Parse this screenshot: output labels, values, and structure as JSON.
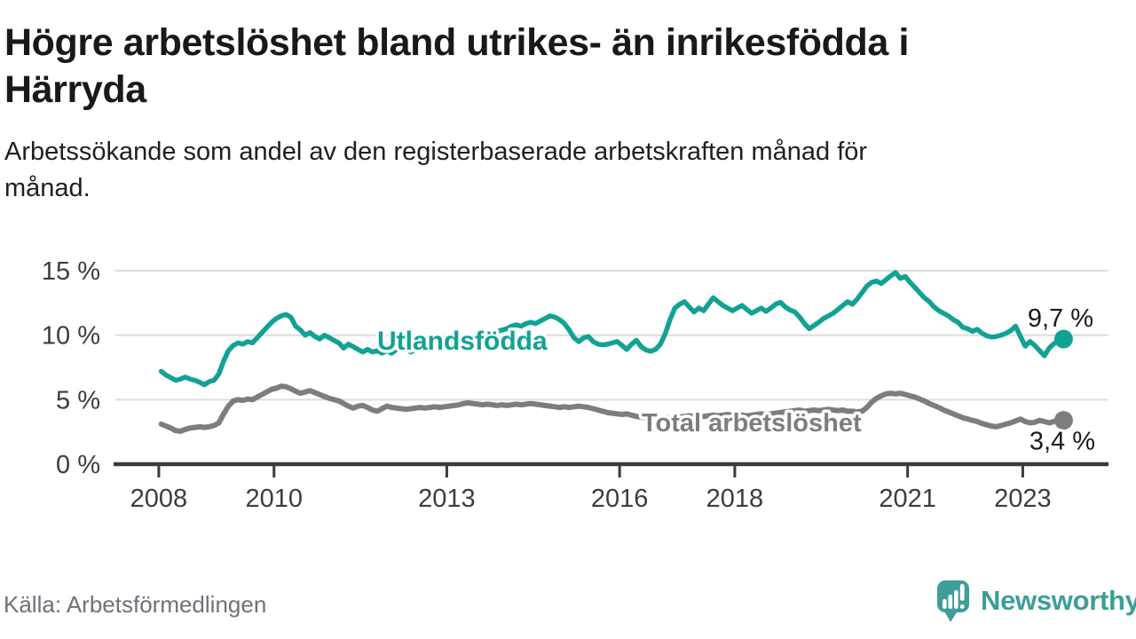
{
  "header": {
    "title_lines": [
      "Högre arbetslöshet bland utrikes- än inrikesfödda i",
      "Härryda"
    ],
    "subtitle_lines": [
      "Arbetssökande som andel av den registerbaserade arbetskraften månad för",
      "månad."
    ]
  },
  "footer": {
    "source_label": "Källa: Arbetsförmedlingen"
  },
  "branding": {
    "name": "Newsworthy",
    "brand_color": "#3d9e99",
    "logo_icon": "newsworthy-speech-bubble-bar-chart-icon"
  },
  "chart_data": {
    "type": "line",
    "title": "Högre arbetslöshet bland utrikes- än inrikesfödda i Härryda",
    "subtitle": "Arbetssökande som andel av den registerbaserade arbetskraften månad för månad.",
    "source": "Källa: Arbetsförmedlingen",
    "unit": "%",
    "frequency": "monthly",
    "start": "2008-01",
    "end": "2023-09",
    "start_decimal_year": 2008.042,
    "x_domain": [
      2007.4,
      2024.47
    ],
    "ylim": [
      0,
      15
    ],
    "grid": "horizontal",
    "legend_position": "inline-labels",
    "colors": {
      "utlandsfodda": "#11a294",
      "total": "#7d7d7d",
      "axis": "#3a3a3a",
      "gridline": "#dcdcdc",
      "value_label": "#1a1a1a"
    },
    "y_axis": {
      "ticks": [
        {
          "value": 0,
          "label": "0 %"
        },
        {
          "value": 5,
          "label": "5 %"
        },
        {
          "value": 10,
          "label": "10 %"
        },
        {
          "value": 15,
          "label": "15 %"
        }
      ]
    },
    "x_axis": {
      "ticks": [
        {
          "year": 2008,
          "label": "2008"
        },
        {
          "year": 2010,
          "label": "2010"
        },
        {
          "year": 2013,
          "label": "2013"
        },
        {
          "year": 2016,
          "label": "2016"
        },
        {
          "year": 2018,
          "label": "2018"
        },
        {
          "year": 2021,
          "label": "2021"
        },
        {
          "year": 2023,
          "label": "2023"
        }
      ]
    },
    "series": [
      {
        "id": "utlandsfodda",
        "name": "Utlandsfödda",
        "color": "#11a294",
        "end_value": 9.7,
        "end_label": "9,7 %",
        "values": [
          7.2,
          6.9,
          6.7,
          6.5,
          6.6,
          6.75,
          6.6,
          6.5,
          6.35,
          6.15,
          6.4,
          6.5,
          7.0,
          8.0,
          8.8,
          9.2,
          9.4,
          9.3,
          9.5,
          9.4,
          9.8,
          10.2,
          10.6,
          11.0,
          11.3,
          11.5,
          11.6,
          11.4,
          10.7,
          10.4,
          10.0,
          10.2,
          9.9,
          9.7,
          10.0,
          9.8,
          9.6,
          9.4,
          9.0,
          9.3,
          9.1,
          8.9,
          8.7,
          8.9,
          8.7,
          8.8,
          8.6,
          8.8,
          8.6,
          8.9,
          9.1,
          8.9,
          8.7,
          8.9,
          9.1,
          9.0,
          9.2,
          9.3,
          9.2,
          9.4,
          9.5,
          9.4,
          9.6,
          9.8,
          9.7,
          9.9,
          10.0,
          10.1,
          10.0,
          10.2,
          10.3,
          10.4,
          10.5,
          10.7,
          10.8,
          10.7,
          10.9,
          11.0,
          10.9,
          11.1,
          11.3,
          11.5,
          11.4,
          11.2,
          10.9,
          10.4,
          9.8,
          9.5,
          9.8,
          9.9,
          9.5,
          9.3,
          9.25,
          9.3,
          9.4,
          9.5,
          9.2,
          8.9,
          9.3,
          9.6,
          9.1,
          8.85,
          8.75,
          8.9,
          9.3,
          10.1,
          11.2,
          12.1,
          12.4,
          12.6,
          12.2,
          11.8,
          12.1,
          11.9,
          12.4,
          12.9,
          12.6,
          12.3,
          12.1,
          11.9,
          12.1,
          12.3,
          12.0,
          11.7,
          11.9,
          12.1,
          11.85,
          12.1,
          12.4,
          12.55,
          12.2,
          11.95,
          11.8,
          11.4,
          10.9,
          10.5,
          10.75,
          11.0,
          11.3,
          11.5,
          11.7,
          12.0,
          12.3,
          12.6,
          12.4,
          12.8,
          13.3,
          13.8,
          14.1,
          14.2,
          14.0,
          14.3,
          14.6,
          14.85,
          14.4,
          14.55,
          14.1,
          13.7,
          13.3,
          12.9,
          12.6,
          12.2,
          11.9,
          11.7,
          11.5,
          11.2,
          11.0,
          10.6,
          10.5,
          10.3,
          10.45,
          10.15,
          9.95,
          9.85,
          9.9,
          10.0,
          10.15,
          10.35,
          10.7,
          9.9,
          9.15,
          9.5,
          9.2,
          8.8,
          8.4,
          9.0,
          9.35,
          9.55,
          9.7
        ]
      },
      {
        "id": "total",
        "name": "Total arbetslöshet",
        "color": "#7d7d7d",
        "end_value": 3.4,
        "end_label": "3,4 %",
        "values": [
          3.1,
          2.95,
          2.8,
          2.6,
          2.55,
          2.7,
          2.8,
          2.85,
          2.9,
          2.85,
          2.9,
          3.0,
          3.2,
          3.9,
          4.5,
          4.9,
          5.0,
          4.95,
          5.05,
          5.0,
          5.2,
          5.4,
          5.6,
          5.8,
          5.9,
          6.05,
          6.0,
          5.85,
          5.65,
          5.5,
          5.6,
          5.7,
          5.55,
          5.4,
          5.25,
          5.1,
          5.0,
          4.9,
          4.7,
          4.5,
          4.35,
          4.5,
          4.55,
          4.4,
          4.2,
          4.1,
          4.3,
          4.5,
          4.4,
          4.35,
          4.3,
          4.25,
          4.3,
          4.35,
          4.4,
          4.35,
          4.4,
          4.45,
          4.4,
          4.45,
          4.5,
          4.55,
          4.6,
          4.7,
          4.75,
          4.7,
          4.65,
          4.6,
          4.65,
          4.6,
          4.55,
          4.6,
          4.55,
          4.6,
          4.65,
          4.6,
          4.65,
          4.7,
          4.65,
          4.6,
          4.55,
          4.5,
          4.45,
          4.4,
          4.45,
          4.4,
          4.45,
          4.5,
          4.45,
          4.4,
          4.3,
          4.2,
          4.1,
          4.0,
          3.95,
          3.9,
          3.85,
          3.9,
          3.8,
          3.7,
          3.65,
          3.6,
          3.55,
          3.5,
          3.55,
          3.6,
          3.55,
          3.6,
          3.65,
          3.7,
          3.75,
          3.7,
          3.65,
          3.7,
          3.75,
          3.8,
          3.75,
          3.8,
          3.85,
          3.8,
          3.85,
          3.8,
          3.75,
          3.8,
          3.85,
          3.9,
          3.85,
          3.9,
          3.95,
          4.0,
          4.05,
          4.1,
          4.15,
          4.2,
          4.1,
          4.15,
          4.2,
          4.15,
          4.2,
          4.25,
          4.2,
          4.15,
          4.2,
          4.1,
          4.1,
          4.05,
          4.1,
          4.4,
          4.8,
          5.1,
          5.3,
          5.45,
          5.5,
          5.45,
          5.5,
          5.4,
          5.3,
          5.2,
          5.05,
          4.9,
          4.7,
          4.55,
          4.4,
          4.2,
          4.05,
          3.9,
          3.75,
          3.6,
          3.5,
          3.4,
          3.3,
          3.15,
          3.05,
          2.95,
          2.9,
          3.0,
          3.1,
          3.2,
          3.35,
          3.5,
          3.3,
          3.2,
          3.25,
          3.4,
          3.3,
          3.2,
          3.3,
          3.5,
          3.4
        ]
      }
    ]
  }
}
